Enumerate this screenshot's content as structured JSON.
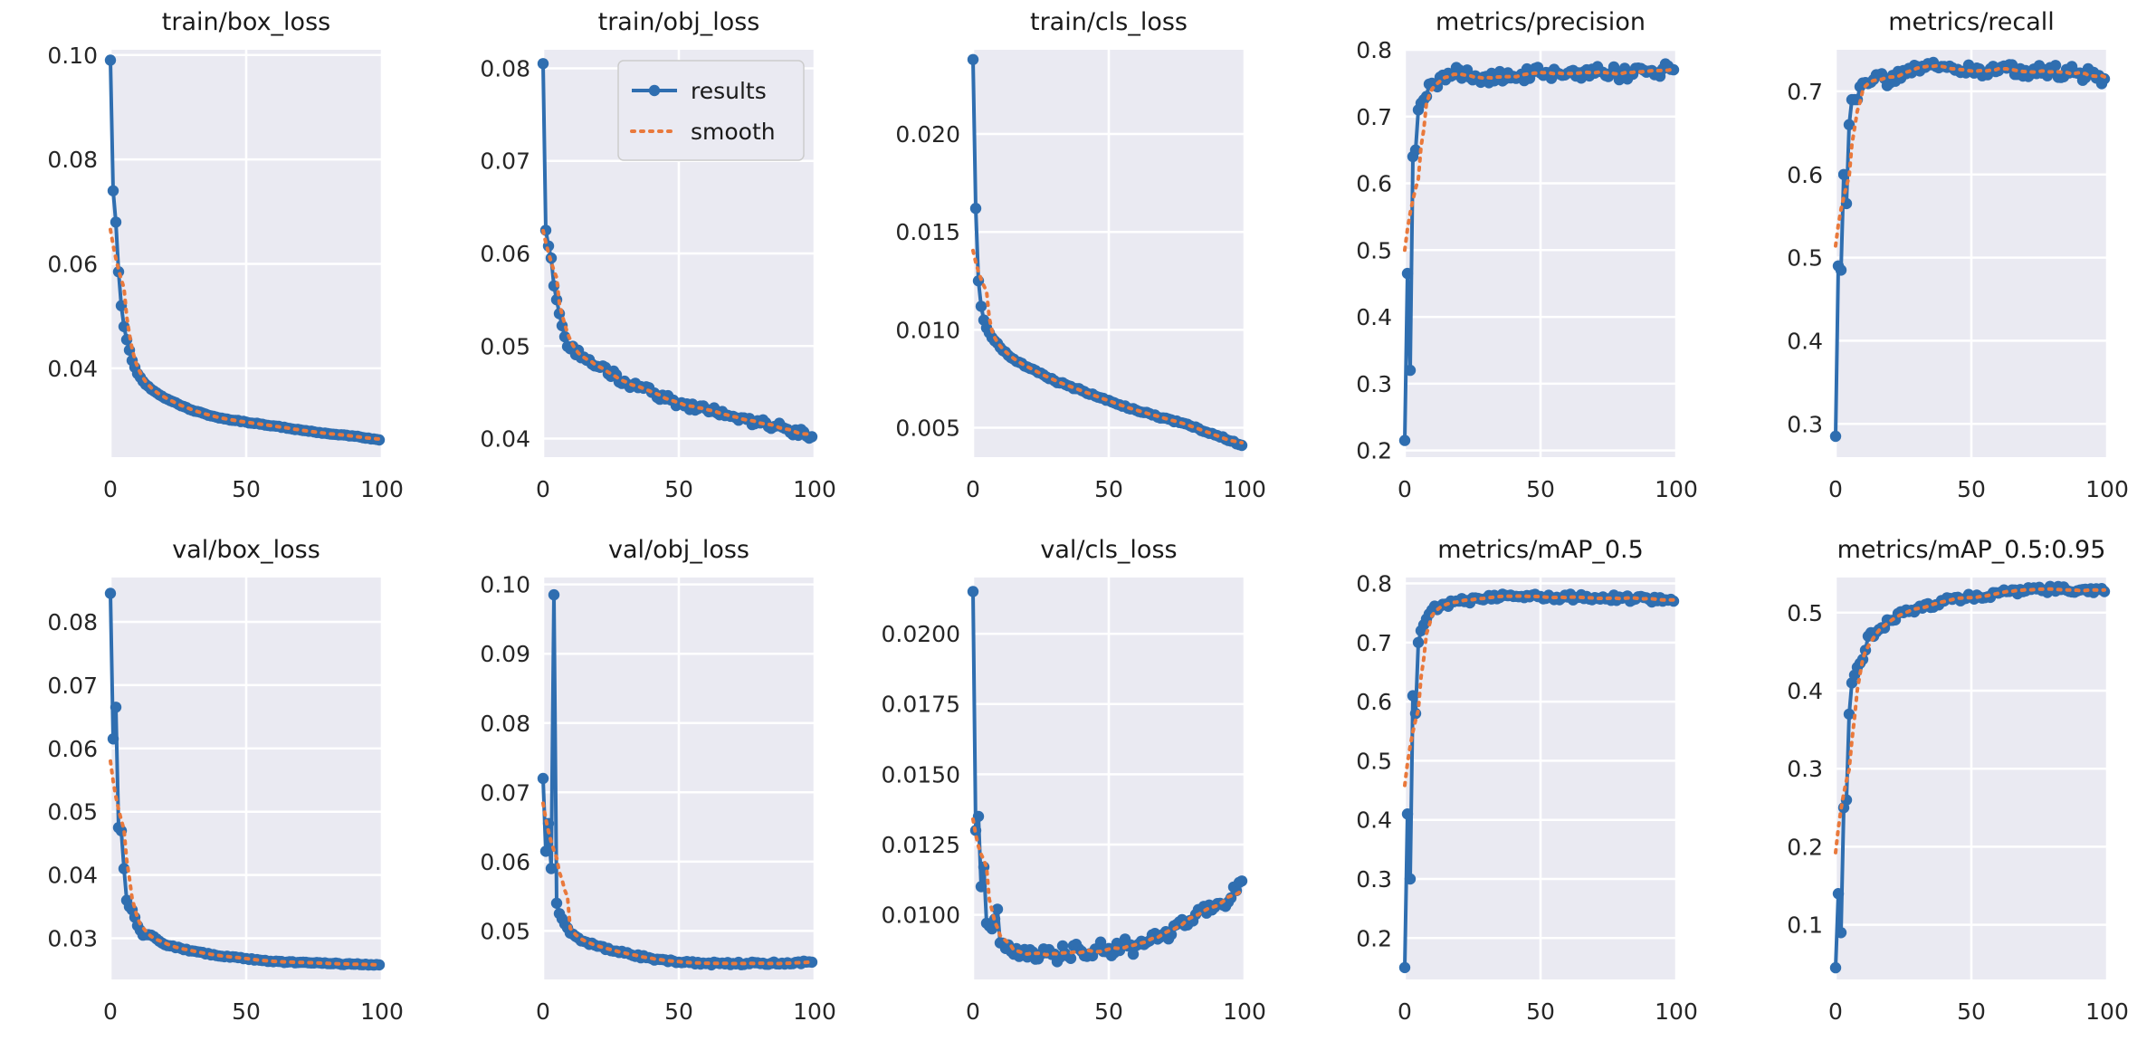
{
  "figure": {
    "results_color": "#2f6eb0",
    "smooth_color": "#e9793c",
    "legend": {
      "results": "results",
      "smooth": "smooth"
    }
  },
  "chart_data": [
    {
      "type": "line",
      "title": "train/box_loss",
      "xlim": [
        0,
        100
      ],
      "ylim": [
        0.023,
        0.101
      ],
      "xticks": [
        0,
        50,
        100
      ],
      "xtick_labels": [
        "0",
        "50",
        "100"
      ],
      "yticks": [
        0.04,
        0.06,
        0.08,
        0.1
      ],
      "ytick_labels": [
        "0.04",
        "0.06",
        "0.08",
        "0.10"
      ],
      "anchors": [
        [
          0,
          0.099
        ],
        [
          1,
          0.074
        ],
        [
          2,
          0.068
        ],
        [
          3,
          0.0585
        ],
        [
          4,
          0.052
        ],
        [
          5,
          0.048
        ],
        [
          6,
          0.0455
        ],
        [
          7,
          0.0435
        ],
        [
          8,
          0.0415
        ],
        [
          10,
          0.039
        ],
        [
          12,
          0.0375
        ],
        [
          15,
          0.036
        ],
        [
          20,
          0.0343
        ],
        [
          30,
          0.032
        ],
        [
          40,
          0.0305
        ],
        [
          50,
          0.0297
        ],
        [
          60,
          0.029
        ],
        [
          70,
          0.0282
        ],
        [
          80,
          0.0275
        ],
        [
          90,
          0.027
        ],
        [
          99,
          0.0263
        ]
      ],
      "noise": 8e-05
    },
    {
      "type": "line",
      "title": "train/obj_loss",
      "xlim": [
        0,
        100
      ],
      "ylim": [
        0.038,
        0.082
      ],
      "xticks": [
        0,
        50,
        100
      ],
      "xtick_labels": [
        "0",
        "50",
        "100"
      ],
      "yticks": [
        0.04,
        0.05,
        0.06,
        0.07,
        0.08
      ],
      "ytick_labels": [
        "0.04",
        "0.05",
        "0.06",
        "0.07",
        "0.08"
      ],
      "legend": true,
      "anchors": [
        [
          0,
          0.0805
        ],
        [
          1,
          0.0625
        ],
        [
          2,
          0.0608
        ],
        [
          3,
          0.0595
        ],
        [
          4,
          0.0565
        ],
        [
          5,
          0.055
        ],
        [
          6,
          0.0535
        ],
        [
          7,
          0.0522
        ],
        [
          8,
          0.051
        ],
        [
          10,
          0.0497
        ],
        [
          15,
          0.0488
        ],
        [
          20,
          0.0478
        ],
        [
          30,
          0.0462
        ],
        [
          40,
          0.045
        ],
        [
          50,
          0.0438
        ],
        [
          60,
          0.0432
        ],
        [
          70,
          0.0424
        ],
        [
          80,
          0.0417
        ],
        [
          90,
          0.041
        ],
        [
          99,
          0.0402
        ]
      ],
      "noise": 0.00045
    },
    {
      "type": "line",
      "title": "train/cls_loss",
      "xlim": [
        0,
        100
      ],
      "ylim": [
        0.0035,
        0.0243
      ],
      "xticks": [
        0,
        50,
        100
      ],
      "xtick_labels": [
        "0",
        "50",
        "100"
      ],
      "yticks": [
        0.005,
        0.01,
        0.015,
        0.02
      ],
      "ytick_labels": [
        "0.005",
        "0.010",
        "0.015",
        "0.020"
      ],
      "anchors": [
        [
          0,
          0.0238
        ],
        [
          1,
          0.0162
        ],
        [
          2,
          0.0125
        ],
        [
          3,
          0.0112
        ],
        [
          4,
          0.0105
        ],
        [
          5,
          0.0101
        ],
        [
          7,
          0.0096
        ],
        [
          10,
          0.0091
        ],
        [
          15,
          0.0085
        ],
        [
          20,
          0.0081
        ],
        [
          30,
          0.0074
        ],
        [
          40,
          0.0069
        ],
        [
          50,
          0.0064
        ],
        [
          60,
          0.0059
        ],
        [
          70,
          0.0055
        ],
        [
          80,
          0.0051
        ],
        [
          90,
          0.0046
        ],
        [
          99,
          0.0041
        ]
      ],
      "noise": 5e-05
    },
    {
      "type": "line",
      "title": "metrics/precision",
      "xlim": [
        0,
        100
      ],
      "ylim": [
        0.19,
        0.8
      ],
      "xticks": [
        0,
        50,
        100
      ],
      "xtick_labels": [
        "0",
        "50",
        "100"
      ],
      "yticks": [
        0.2,
        0.3,
        0.4,
        0.5,
        0.6,
        0.7,
        0.8
      ],
      "ytick_labels": [
        "0.2",
        "0.3",
        "0.4",
        "0.5",
        "0.6",
        "0.7",
        "0.8"
      ],
      "anchors": [
        [
          0,
          0.215
        ],
        [
          1,
          0.465
        ],
        [
          2,
          0.32
        ],
        [
          3,
          0.64
        ],
        [
          4,
          0.65
        ],
        [
          5,
          0.71
        ],
        [
          6,
          0.72
        ],
        [
          8,
          0.73
        ],
        [
          10,
          0.75
        ],
        [
          15,
          0.755
        ],
        [
          20,
          0.77
        ],
        [
          25,
          0.755
        ],
        [
          30,
          0.76
        ],
        [
          40,
          0.76
        ],
        [
          50,
          0.765
        ],
        [
          60,
          0.765
        ],
        [
          70,
          0.765
        ],
        [
          80,
          0.765
        ],
        [
          90,
          0.768
        ],
        [
          99,
          0.77
        ]
      ],
      "noise": 0.01
    },
    {
      "type": "line",
      "title": "metrics/recall",
      "xlim": [
        0,
        100
      ],
      "ylim": [
        0.26,
        0.75
      ],
      "xticks": [
        0,
        50,
        100
      ],
      "xtick_labels": [
        "0",
        "50",
        "100"
      ],
      "yticks": [
        0.3,
        0.4,
        0.5,
        0.6,
        0.7
      ],
      "ytick_labels": [
        "0.3",
        "0.4",
        "0.5",
        "0.6",
        "0.7"
      ],
      "anchors": [
        [
          0,
          0.285
        ],
        [
          1,
          0.49
        ],
        [
          2,
          0.485
        ],
        [
          3,
          0.6
        ],
        [
          4,
          0.565
        ],
        [
          5,
          0.66
        ],
        [
          6,
          0.69
        ],
        [
          8,
          0.69
        ],
        [
          10,
          0.71
        ],
        [
          15,
          0.72
        ],
        [
          20,
          0.71
        ],
        [
          25,
          0.725
        ],
        [
          30,
          0.73
        ],
        [
          40,
          0.73
        ],
        [
          50,
          0.725
        ],
        [
          60,
          0.725
        ],
        [
          70,
          0.725
        ],
        [
          80,
          0.725
        ],
        [
          90,
          0.722
        ],
        [
          99,
          0.715
        ]
      ],
      "noise": 0.008
    },
    {
      "type": "line",
      "title": "val/box_loss",
      "xlim": [
        0,
        100
      ],
      "ylim": [
        0.0235,
        0.087
      ],
      "xticks": [
        0,
        50,
        100
      ],
      "xtick_labels": [
        "0",
        "50",
        "100"
      ],
      "yticks": [
        0.03,
        0.04,
        0.05,
        0.06,
        0.07,
        0.08
      ],
      "ytick_labels": [
        "0.03",
        "0.04",
        "0.05",
        "0.06",
        "0.07",
        "0.08"
      ],
      "anchors": [
        [
          0,
          0.0845
        ],
        [
          1,
          0.0615
        ],
        [
          2,
          0.0665
        ],
        [
          3,
          0.0475
        ],
        [
          4,
          0.047
        ],
        [
          5,
          0.041
        ],
        [
          6,
          0.036
        ],
        [
          7,
          0.035
        ],
        [
          8,
          0.0345
        ],
        [
          10,
          0.032
        ],
        [
          12,
          0.0305
        ],
        [
          15,
          0.0305
        ],
        [
          20,
          0.029
        ],
        [
          30,
          0.028
        ],
        [
          40,
          0.0272
        ],
        [
          50,
          0.0268
        ],
        [
          60,
          0.0263
        ],
        [
          70,
          0.0262
        ],
        [
          80,
          0.026
        ],
        [
          90,
          0.0259
        ],
        [
          99,
          0.0258
        ]
      ],
      "noise": 0.0001
    },
    {
      "type": "line",
      "title": "val/obj_loss",
      "xlim": [
        0,
        100
      ],
      "ylim": [
        0.043,
        0.101
      ],
      "xticks": [
        0,
        50,
        100
      ],
      "xtick_labels": [
        "0",
        "50",
        "100"
      ],
      "yticks": [
        0.05,
        0.06,
        0.07,
        0.08,
        0.09,
        0.1
      ],
      "ytick_labels": [
        "0.05",
        "0.06",
        "0.07",
        "0.08",
        "0.09",
        "0.10"
      ],
      "anchors": [
        [
          0,
          0.072
        ],
        [
          1,
          0.0615
        ],
        [
          2,
          0.0655
        ],
        [
          3,
          0.059
        ],
        [
          4,
          0.0985
        ],
        [
          5,
          0.054
        ],
        [
          6,
          0.0525
        ],
        [
          8,
          0.051
        ],
        [
          10,
          0.0497
        ],
        [
          15,
          0.0485
        ],
        [
          20,
          0.0478
        ],
        [
          30,
          0.0468
        ],
        [
          40,
          0.046
        ],
        [
          50,
          0.0455
        ],
        [
          60,
          0.0453
        ],
        [
          70,
          0.0453
        ],
        [
          80,
          0.0453
        ],
        [
          90,
          0.0454
        ],
        [
          99,
          0.0455
        ]
      ],
      "noise": 0.0002
    },
    {
      "type": "line",
      "title": "val/cls_loss",
      "xlim": [
        0,
        100
      ],
      "ylim": [
        0.0077,
        0.022
      ],
      "xticks": [
        0,
        50,
        100
      ],
      "xtick_labels": [
        "0",
        "50",
        "100"
      ],
      "yticks": [
        0.01,
        0.0125,
        0.015,
        0.0175,
        0.02
      ],
      "ytick_labels": [
        "0.0100",
        "0.0125",
        "0.0150",
        "0.0175",
        "0.0200"
      ],
      "anchors": [
        [
          0,
          0.0215
        ],
        [
          1,
          0.013
        ],
        [
          2,
          0.0135
        ],
        [
          3,
          0.011
        ],
        [
          4,
          0.0117
        ],
        [
          5,
          0.0097
        ],
        [
          7,
          0.0095
        ],
        [
          9,
          0.0102
        ],
        [
          10,
          0.009
        ],
        [
          12,
          0.0088
        ],
        [
          15,
          0.0086
        ],
        [
          20,
          0.0085
        ],
        [
          25,
          0.0086
        ],
        [
          30,
          0.0086
        ],
        [
          40,
          0.0087
        ],
        [
          50,
          0.0088
        ],
        [
          60,
          0.0089
        ],
        [
          70,
          0.0093
        ],
        [
          80,
          0.0098
        ],
        [
          85,
          0.0103
        ],
        [
          90,
          0.0104
        ],
        [
          95,
          0.0106
        ],
        [
          99,
          0.0112
        ]
      ],
      "noise": 0.0003
    },
    {
      "type": "line",
      "title": "metrics/mAP_0.5",
      "xlim": [
        0,
        100
      ],
      "ylim": [
        0.13,
        0.81
      ],
      "xticks": [
        0,
        50,
        100
      ],
      "xtick_labels": [
        "0",
        "50",
        "100"
      ],
      "yticks": [
        0.2,
        0.3,
        0.4,
        0.5,
        0.6,
        0.7,
        0.8
      ],
      "ytick_labels": [
        "0.2",
        "0.3",
        "0.4",
        "0.5",
        "0.6",
        "0.7",
        "0.8"
      ],
      "anchors": [
        [
          0,
          0.15
        ],
        [
          1,
          0.41
        ],
        [
          2,
          0.3
        ],
        [
          3,
          0.61
        ],
        [
          4,
          0.58
        ],
        [
          5,
          0.7
        ],
        [
          6,
          0.72
        ],
        [
          8,
          0.74
        ],
        [
          10,
          0.755
        ],
        [
          15,
          0.765
        ],
        [
          20,
          0.77
        ],
        [
          30,
          0.775
        ],
        [
          40,
          0.778
        ],
        [
          50,
          0.778
        ],
        [
          60,
          0.777
        ],
        [
          70,
          0.776
        ],
        [
          80,
          0.775
        ],
        [
          90,
          0.773
        ],
        [
          99,
          0.77
        ]
      ],
      "noise": 0.005
    },
    {
      "type": "line",
      "title": "metrics/mAP_0.5:0.95",
      "xlim": [
        0,
        100
      ],
      "ylim": [
        0.03,
        0.545
      ],
      "xticks": [
        0,
        50,
        100
      ],
      "xtick_labels": [
        "0",
        "50",
        "100"
      ],
      "yticks": [
        0.1,
        0.2,
        0.3,
        0.4,
        0.5
      ],
      "ytick_labels": [
        "0.1",
        "0.2",
        "0.3",
        "0.4",
        "0.5"
      ],
      "anchors": [
        [
          0,
          0.045
        ],
        [
          1,
          0.14
        ],
        [
          2,
          0.09
        ],
        [
          3,
          0.25
        ],
        [
          4,
          0.26
        ],
        [
          5,
          0.37
        ],
        [
          6,
          0.41
        ],
        [
          8,
          0.43
        ],
        [
          10,
          0.44
        ],
        [
          12,
          0.47
        ],
        [
          15,
          0.475
        ],
        [
          20,
          0.49
        ],
        [
          25,
          0.5
        ],
        [
          30,
          0.505
        ],
        [
          40,
          0.515
        ],
        [
          50,
          0.52
        ],
        [
          60,
          0.525
        ],
        [
          70,
          0.528
        ],
        [
          80,
          0.53
        ],
        [
          90,
          0.529
        ],
        [
          99,
          0.527
        ]
      ],
      "noise": 0.004
    }
  ]
}
